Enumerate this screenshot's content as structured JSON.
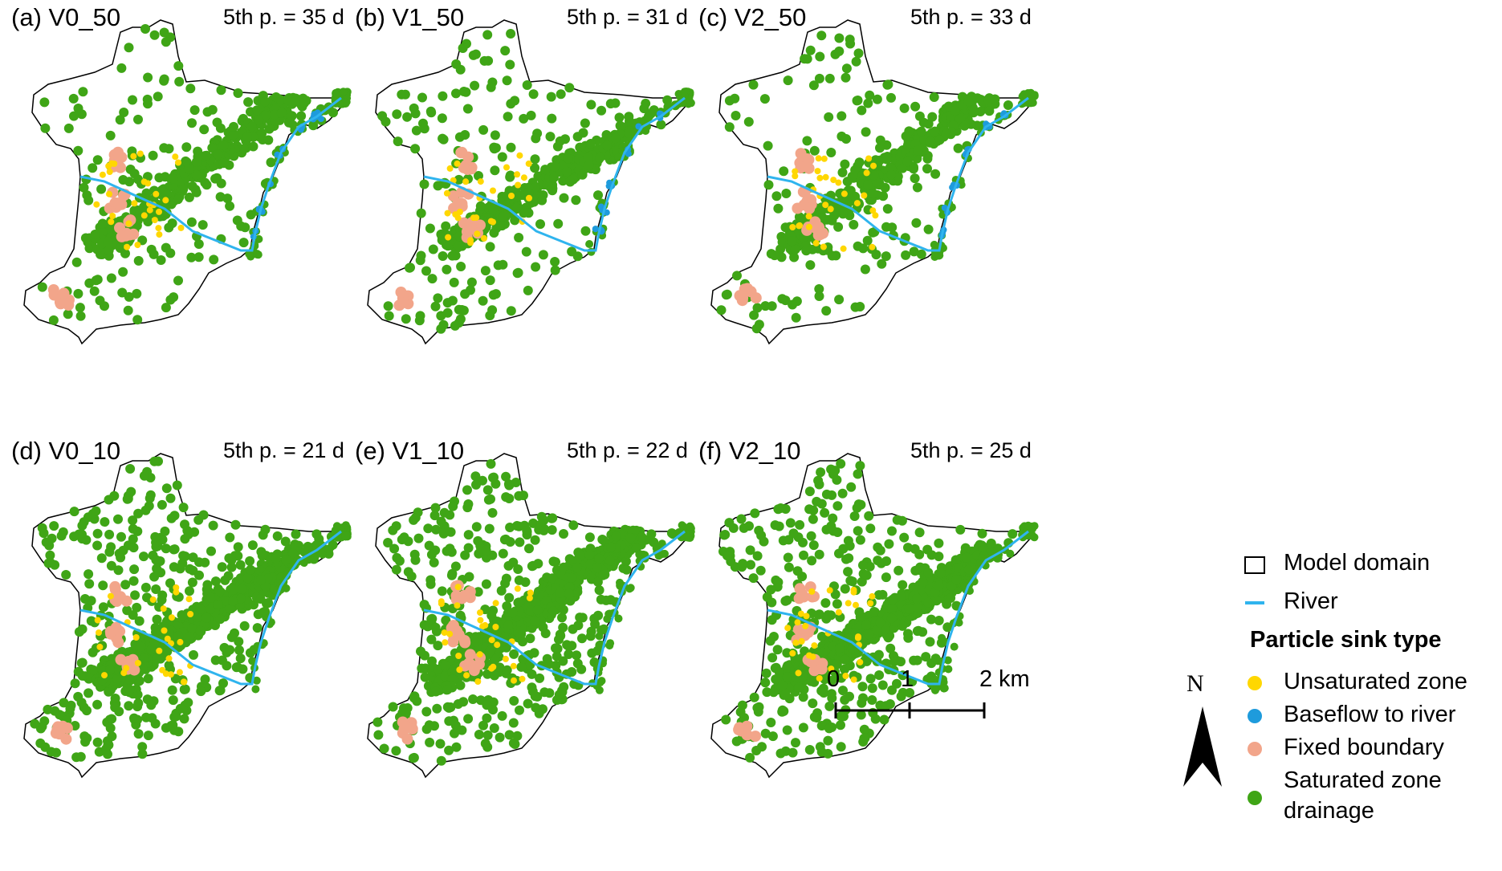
{
  "panels": [
    {
      "label": "(a) V0_50",
      "percentile": "5th p. = 35 d"
    },
    {
      "label": "(b) V1_50",
      "percentile": "5th p. = 31 d"
    },
    {
      "label": "(c) V2_50",
      "percentile": "5th p. = 33 d"
    },
    {
      "label": "(d) V0_10",
      "percentile": "5th p. = 21 d"
    },
    {
      "label": "(e) V1_10",
      "percentile": "5th p. = 22 d"
    },
    {
      "label": "(f) V2_10",
      "percentile": "5th p. = 25 d"
    }
  ],
  "legend": {
    "model_domain": "Model domain",
    "river": "River",
    "sink_title": "Particle sink type",
    "unsaturated": "Unsaturated zone",
    "baseflow": "Baseflow to river",
    "fixed": "Fixed boundary",
    "saturated_line1": "Saturated zone",
    "saturated_line2": "drainage"
  },
  "colors": {
    "unsaturated": "#FFD700",
    "baseflow": "#1E9BDC",
    "fixed": "#F2A58A",
    "saturated": "#3FA516",
    "river": "#2FB4EE",
    "domain_outline": "#000000"
  },
  "north_label": "N",
  "scale": {
    "ticks": [
      "0",
      "1",
      "2"
    ],
    "unit": "km"
  }
}
